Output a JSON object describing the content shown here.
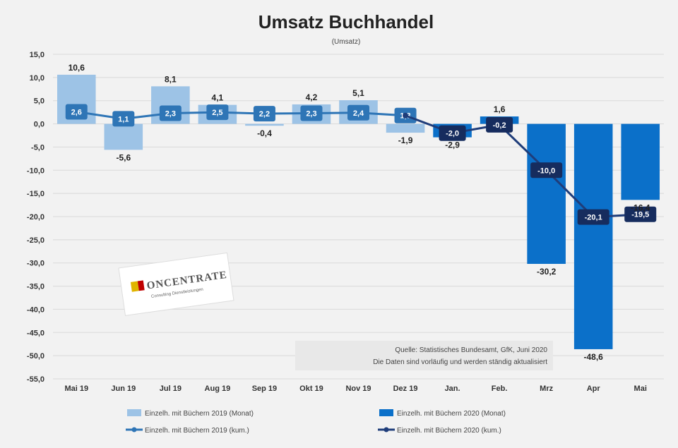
{
  "chart_data": {
    "type": "bar",
    "title": "Umsatz Buchhandel",
    "subtitle": "(Umsatz)",
    "categories": [
      "Mai 19",
      "Jun 19",
      "Jul 19",
      "Aug 19",
      "Sep 19",
      "Okt 19",
      "Nov 19",
      "Dez 19",
      "Jan.",
      "Feb.",
      "Mrz",
      "Apr",
      "Mai"
    ],
    "ylim": [
      -55,
      15
    ],
    "yticks": [
      15,
      10,
      5,
      0,
      -5,
      -10,
      -15,
      -20,
      -25,
      -30,
      -35,
      -40,
      -45,
      -50,
      -55
    ],
    "ytick_labels": [
      "15,0",
      "10,0",
      "5,0",
      "0,0",
      "-5,0",
      "-10,0",
      "-15,0",
      "-20,0",
      "-25,0",
      "-30,0",
      "-35,0",
      "-40,0",
      "-45,0",
      "-50,0",
      "-55,0"
    ],
    "grid": true,
    "series": [
      {
        "name": "Einzelh. mit Büchern 2019 (Monat)",
        "kind": "bar",
        "color": "#9dc3e6",
        "values": [
          10.6,
          -5.6,
          8.1,
          4.1,
          -0.4,
          4.2,
          5.1,
          -1.9,
          null,
          null,
          null,
          null,
          null
        ],
        "labels": [
          "10,6",
          "-5,6",
          "8,1",
          "4,1",
          "-0,4",
          "4,2",
          "5,1",
          "-1,9",
          "",
          "",
          "",
          "",
          ""
        ]
      },
      {
        "name": "Einzelh. mit Büchern 2020 (Monat)",
        "kind": "bar",
        "color": "#0b70c9",
        "values": [
          null,
          null,
          null,
          null,
          null,
          null,
          null,
          null,
          -2.9,
          1.6,
          -30.2,
          -48.6,
          -16.4
        ],
        "labels": [
          "",
          "",
          "",
          "",
          "",
          "",
          "",
          "",
          "-2,9",
          "1,6",
          "-30,2",
          "-48,6",
          "-16,4"
        ]
      },
      {
        "name": "Einzelh. mit Büchern 2019 (kum.)",
        "kind": "line",
        "color": "#2e75b6",
        "values": [
          2.6,
          1.1,
          2.3,
          2.5,
          2.2,
          2.3,
          2.4,
          1.8,
          null,
          null,
          null,
          null,
          null
        ],
        "labels": [
          "2,6",
          "1,1",
          "2,3",
          "2,5",
          "2,2",
          "2,3",
          "2,4",
          "1,8",
          "",
          "",
          "",
          "",
          ""
        ]
      },
      {
        "name": "Einzelh. mit Büchern 2020 (kum.)",
        "kind": "line",
        "color": "#1f3d7a",
        "values": [
          null,
          null,
          null,
          null,
          null,
          null,
          null,
          1.8,
          -2.0,
          -0.2,
          -10.0,
          -20.1,
          -19.5
        ],
        "labels": [
          "",
          "",
          "",
          "",
          "",
          "",
          "",
          "",
          "-2,0",
          "-0,2",
          "-10,0",
          "-20,1",
          "-19,5"
        ]
      }
    ],
    "legend": "bottom",
    "source_lines": [
      "Quelle: Statistisches Bundesamt, GfK, Juni 2020",
      "Die Daten sind vorläufig und werden ständig aktualisiert"
    ],
    "logo": {
      "text": "ONCENTRATE",
      "sub": "Consulting Dienstleistungen"
    },
    "colors": {
      "bar2019": "#9dc3e6",
      "bar2020": "#0b70c9",
      "line2019": "#2e75b6",
      "line2020": "#1f3d7a",
      "box2020": "#162c5e"
    }
  }
}
